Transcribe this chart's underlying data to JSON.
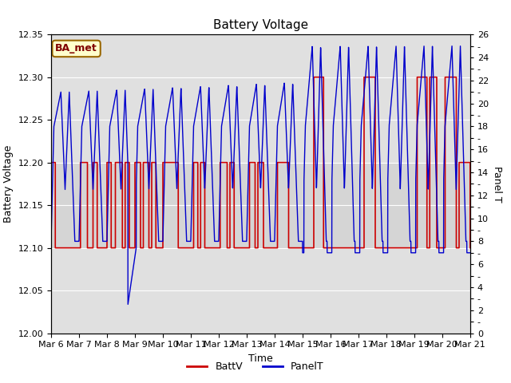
{
  "title": "Battery Voltage",
  "xlabel": "Time",
  "ylabel_left": "Battery Voltage",
  "ylabel_right": "Panel T",
  "annotation": "BA_met",
  "x_ticks": [
    "Mar 6",
    "Mar 7",
    "Mar 8",
    "Mar 9",
    "Mar 10",
    "Mar 11",
    "Mar 12",
    "Mar 13",
    "Mar 14",
    "Mar 15",
    "Mar 16",
    "Mar 17",
    "Mar 18",
    "Mar 19",
    "Mar 20",
    "Mar 21"
  ],
  "ylim_left": [
    12.0,
    12.35
  ],
  "ylim_right": [
    0,
    26
  ],
  "yticks_left": [
    12.0,
    12.05,
    12.1,
    12.15,
    12.2,
    12.25,
    12.3,
    12.35
  ],
  "yticks_right_labeled": [
    0,
    2,
    4,
    6,
    8,
    10,
    12,
    14,
    16,
    18,
    20,
    22,
    24,
    26
  ],
  "battv_color": "#cc0000",
  "panelt_color": "#0000cc",
  "bg_color": "#e0e0e0",
  "inner_bg": "#d4d4d4",
  "fig_bg": "#ffffff",
  "annotation_bg": "#ffffcc",
  "annotation_border": "#996600"
}
